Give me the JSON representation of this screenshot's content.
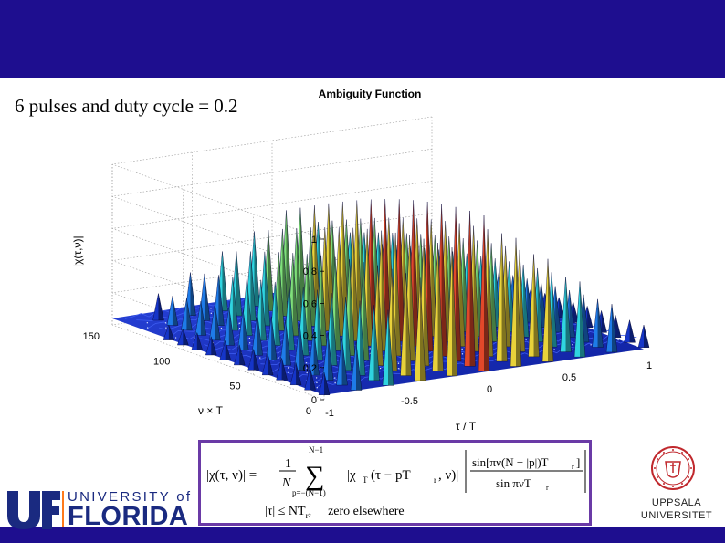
{
  "slide": {
    "subtitle": "6 pulses and duty cycle = 0.2"
  },
  "chart": {
    "title": "Ambiguity Function",
    "zlabel": "|χ(τ,ν)|",
    "xlabel": "τ / T",
    "ylabel": "ν × T",
    "z_ticks": [
      "1",
      "0.8",
      "0.6",
      "0.4",
      "0.2",
      "0"
    ],
    "y_ticks": [
      "150",
      "100",
      "50",
      "0"
    ],
    "x_ticks": [
      "-1",
      "-0.5",
      "0",
      "0.5",
      "1"
    ]
  },
  "chart_data": {
    "type": "surface",
    "title": "Ambiguity Function",
    "xlabel": "τ / T",
    "ylabel": "ν × T",
    "zlabel": "|χ(τ,ν)|",
    "xlim": [
      -1,
      1
    ],
    "ylim": [
      0,
      150
    ],
    "zlim": [
      0,
      1
    ],
    "grid": true,
    "pulse_train_peaks": {
      "tau_over_T": [
        -1,
        -0.8,
        -0.6,
        -0.4,
        -0.2,
        0,
        0.2,
        0.4,
        0.6,
        0.8,
        1
      ],
      "peak_height_at_nu0": [
        0.17,
        0.33,
        0.5,
        0.67,
        0.83,
        1.0,
        0.83,
        0.67,
        0.5,
        0.33,
        0.17
      ]
    }
  },
  "formula": {
    "lhs": "|χ(τ, ν)| = ",
    "frac_num": "1",
    "frac_den": "N",
    "sum_top": "N−1",
    "sum_bottom": "p=−(N−1)",
    "term": "|χ",
    "term_sub": "T",
    "term_rest": "(τ − pT",
    "term_sub2": "r",
    "term_end": ", ν)|",
    "ratio_num": "sin[πν(N − |p|)T",
    "ratio_num_sub": "r",
    "ratio_num_end": "]",
    "ratio_den": "sin πνT",
    "ratio_den_sub": "r",
    "cond": "|τ| ≤ NT",
    "cond_sub": "r",
    "cond_end": ",",
    "elsewhere": "zero elsewhere"
  },
  "logos": {
    "uf_line1": "UNIVERSITY of",
    "uf_line2": "FLORIDA",
    "uu_line1": "UPPSALA",
    "uu_line2": "UNIVERSITET"
  },
  "colors": {
    "banner": "#1e0e8f",
    "surface_low": "#1a2fd0",
    "surface_high": "#e84a2a",
    "formula_border": "#6a3aa6"
  }
}
